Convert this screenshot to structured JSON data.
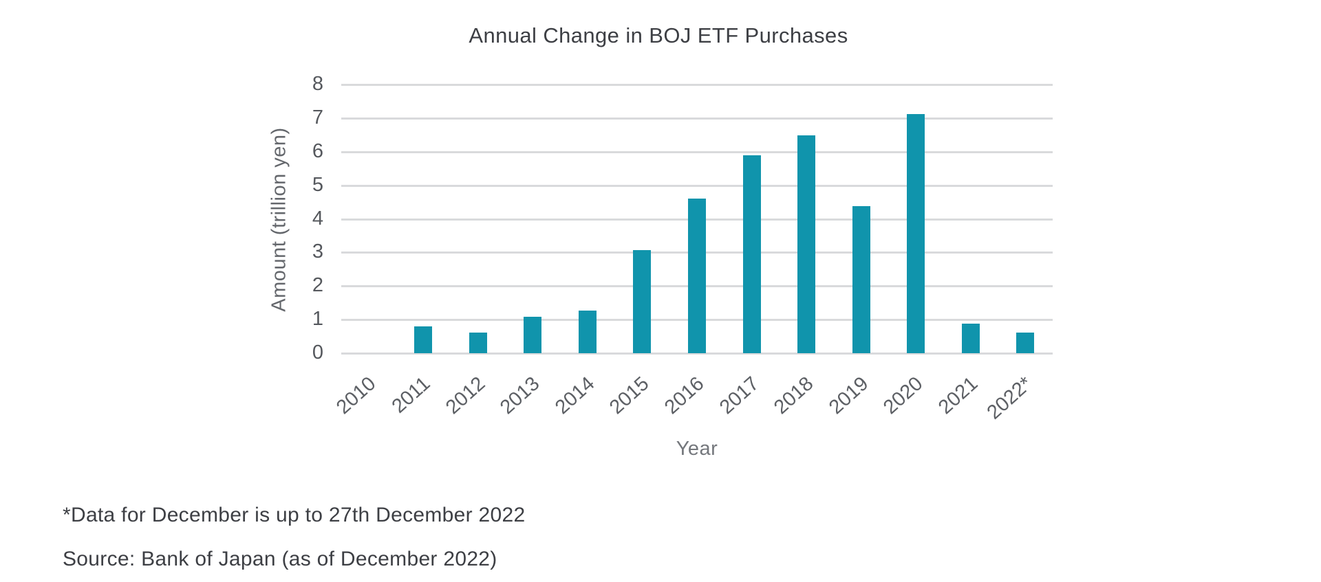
{
  "chart_data": {
    "type": "bar",
    "title": "Annual Change in BOJ ETF Purchases",
    "categories": [
      "2010",
      "2011",
      "2012",
      "2013",
      "2014",
      "2015",
      "2016",
      "2017",
      "2018",
      "2019",
      "2020",
      "2021",
      "2022*"
    ],
    "values": [
      0,
      0.8,
      0.62,
      1.08,
      1.27,
      3.06,
      4.6,
      5.9,
      6.48,
      4.37,
      7.12,
      0.87,
      0.62
    ],
    "xlabel": "Year",
    "ylabel": "Amount (trillion yen)",
    "ylim": [
      0,
      8
    ],
    "yticks": [
      0,
      1,
      2,
      3,
      4,
      5,
      6,
      7,
      8
    ],
    "grid": true,
    "legend_position": "none",
    "bar_color": "#1094ac",
    "gridline_color": "#d9dadc"
  },
  "footnotes": {
    "asterisk": "*Data for December is up to 27th December 2022",
    "source": "Source: Bank of Japan (as of December 2022)"
  }
}
